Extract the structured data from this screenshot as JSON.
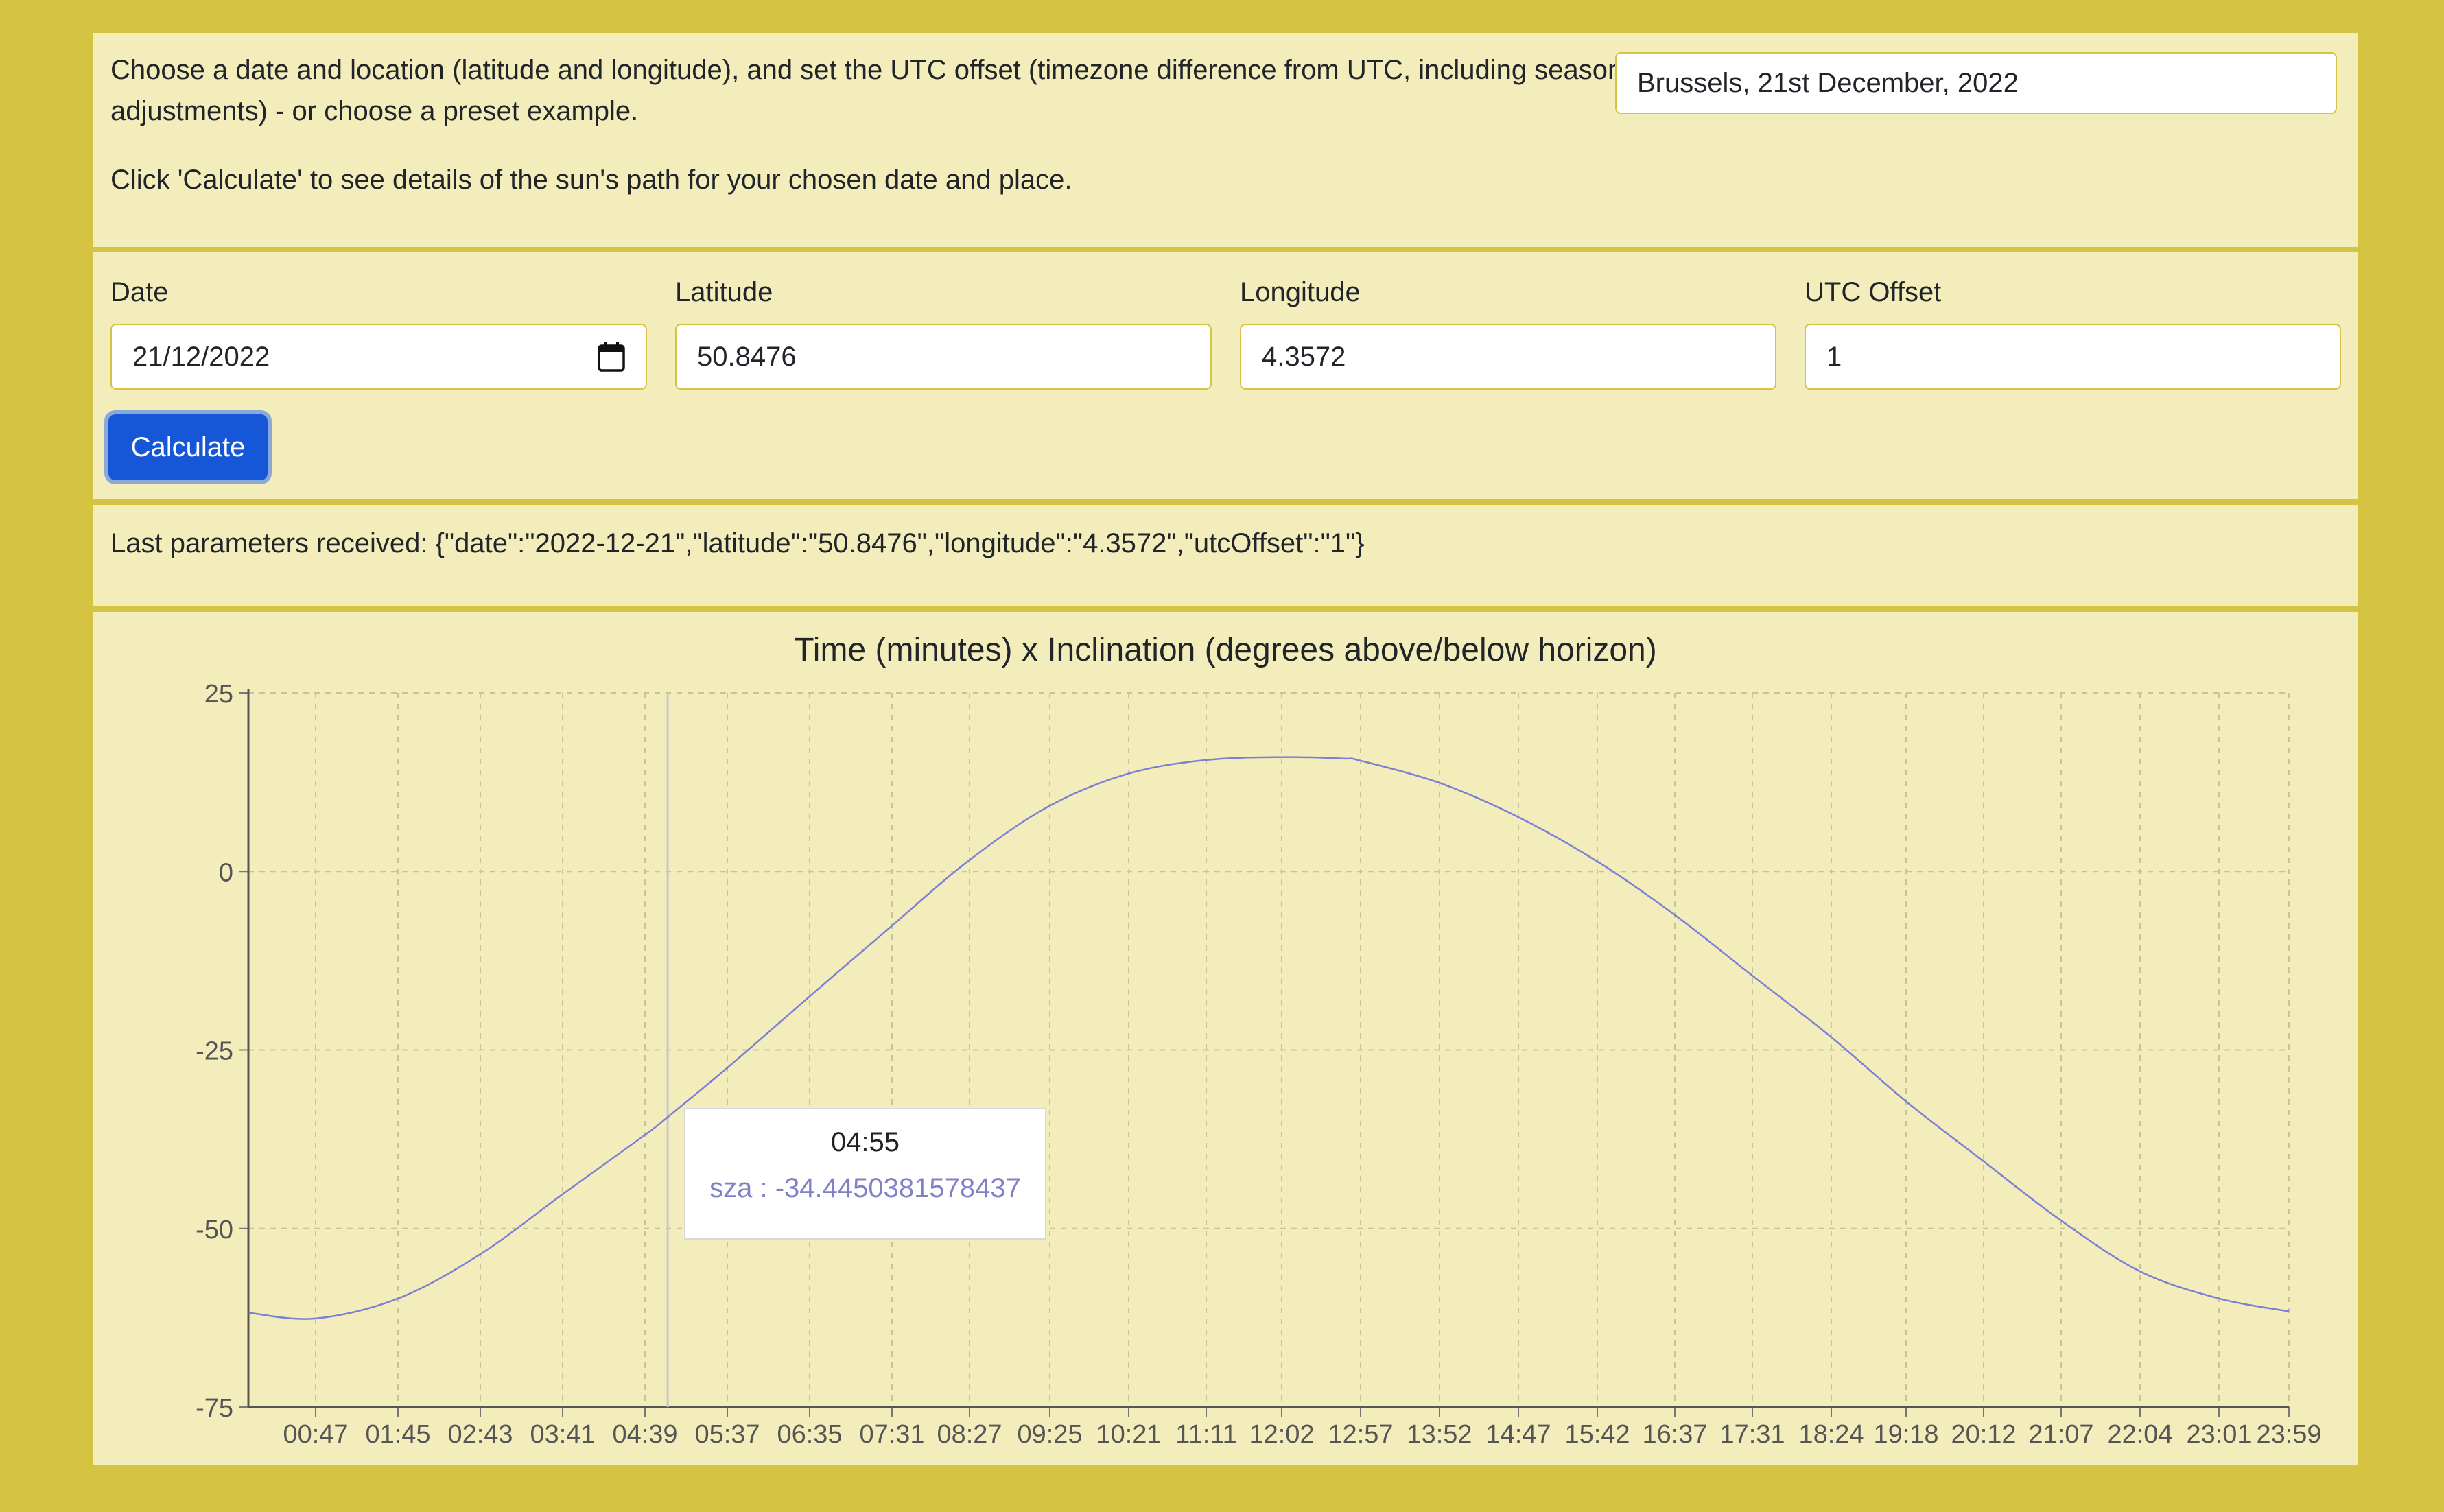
{
  "intro": {
    "line1": "Choose a date and location (latitude and longitude), and set the UTC offset (timezone difference from UTC, including seasonal adjustments) - or choose a preset example.",
    "line2": "Click 'Calculate' to see details of the sun's path for your chosen date and place."
  },
  "preset": {
    "value": "Brussels, 21st December, 2022"
  },
  "form": {
    "date_label": "Date",
    "date_value": "21/12/2022",
    "latitude_label": "Latitude",
    "latitude_value": "50.8476",
    "longitude_label": "Longitude",
    "longitude_value": "4.3572",
    "utc_label": "UTC Offset",
    "utc_value": "1",
    "calculate_label": "Calculate"
  },
  "params_text": "Last parameters received: {\"date\":\"2022-12-21\",\"latitude\":\"50.8476\",\"longitude\":\"4.3572\",\"utcOffset\":\"1\"}",
  "colors": {
    "background": "#d4c441",
    "panel": "#f3edbb",
    "accent": "#1557d6",
    "series": "#7b7fd6"
  },
  "chart_data": {
    "type": "line",
    "title": "Time (minutes) x Inclination (degrees above/below horizon)",
    "xlabel": "",
    "ylabel": "",
    "ylim": [
      -75,
      25
    ],
    "yticks": [
      25,
      0,
      -25,
      -50,
      -75
    ],
    "x_ticks": [
      "00:47",
      "01:45",
      "02:43",
      "03:41",
      "04:39",
      "05:37",
      "06:35",
      "07:31",
      "08:27",
      "09:25",
      "10:21",
      "11:11",
      "12:02",
      "12:57",
      "13:52",
      "14:47",
      "15:42",
      "16:37",
      "17:31",
      "18:24",
      "19:18",
      "20:12",
      "21:07",
      "22:04",
      "23:01",
      "23:59"
    ],
    "grid": true,
    "series": [
      {
        "name": "sza",
        "x": [
          "00:00",
          "00:47",
          "01:45",
          "02:43",
          "03:41",
          "04:39",
          "04:55",
          "05:37",
          "06:35",
          "07:31",
          "08:27",
          "09:25",
          "10:21",
          "11:11",
          "12:02",
          "12:45",
          "12:57",
          "13:52",
          "14:47",
          "15:42",
          "16:37",
          "17:31",
          "18:24",
          "19:18",
          "20:12",
          "21:07",
          "22:04",
          "23:01",
          "23:59"
        ],
        "values": [
          -61.8,
          -62.6,
          -59.8,
          -53.6,
          -45.2,
          -36.9,
          -34.4,
          -27.5,
          -17.5,
          -7.6,
          1.6,
          9.2,
          13.7,
          15.6,
          16.0,
          15.8,
          15.5,
          12.4,
          7.6,
          1.4,
          -6.1,
          -14.6,
          -23.2,
          -32.2,
          -40.6,
          -48.9,
          -56.0,
          -59.8,
          -61.6
        ]
      }
    ],
    "hover": {
      "time": "04:55",
      "label": "sza : -34.4450381578437"
    }
  }
}
